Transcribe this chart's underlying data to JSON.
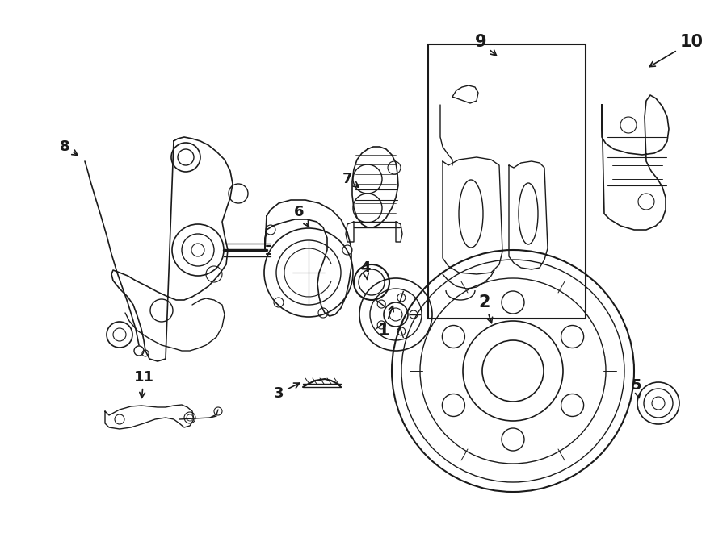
{
  "bg_color": "#ffffff",
  "line_color": "#1a1a1a",
  "lw": 1.0,
  "fig_width": 9.0,
  "fig_height": 6.61,
  "dpi": 100
}
